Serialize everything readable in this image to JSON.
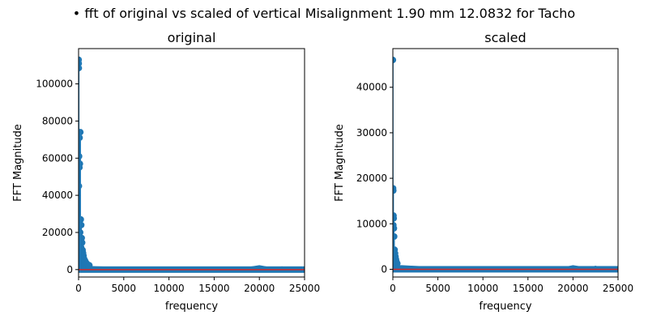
{
  "figure": {
    "suptitle": "• fft of original vs scaled of vertical Misalignment 1.90 mm 12.0832 for Tacho"
  },
  "colors": {
    "marker": "#1f77b4",
    "stem_baseline": "#d62728",
    "axes": "#000000",
    "background": "#ffffff"
  },
  "chart_data": [
    {
      "type": "scatter",
      "title": "original",
      "xlabel": "frequency",
      "ylabel": "FFT Magnitude",
      "xlim": [
        0,
        25000
      ],
      "ylim": [
        -4000,
        119000
      ],
      "xticks": [
        0,
        5000,
        10000,
        15000,
        20000,
        25000
      ],
      "yticks": [
        0,
        20000,
        40000,
        60000,
        80000,
        100000
      ],
      "peaks": [
        {
          "x": 10,
          "y": 113000
        },
        {
          "x": 20,
          "y": 111000
        },
        {
          "x": 30,
          "y": 108500
        },
        {
          "x": 200,
          "y": 74000
        },
        {
          "x": 120,
          "y": 71000
        },
        {
          "x": 60,
          "y": 61000
        },
        {
          "x": 150,
          "y": 57000
        },
        {
          "x": 100,
          "y": 55000
        },
        {
          "x": 40,
          "y": 45000
        },
        {
          "x": 250,
          "y": 27000
        },
        {
          "x": 300,
          "y": 24000
        },
        {
          "x": 180,
          "y": 20000
        },
        {
          "x": 350,
          "y": 17000
        },
        {
          "x": 400,
          "y": 14500
        },
        {
          "x": 280,
          "y": 12000
        },
        {
          "x": 450,
          "y": 10500
        },
        {
          "x": 500,
          "y": 9000
        },
        {
          "x": 550,
          "y": 7500
        },
        {
          "x": 600,
          "y": 6000
        },
        {
          "x": 700,
          "y": 5000
        },
        {
          "x": 800,
          "y": 4000
        },
        {
          "x": 900,
          "y": 3300
        },
        {
          "x": 1000,
          "y": 2800
        },
        {
          "x": 1200,
          "y": 2300
        }
      ],
      "envelope": [
        [
          0,
          2000
        ],
        [
          1000,
          2000
        ],
        [
          2000,
          1800
        ],
        [
          4000,
          1500
        ],
        [
          6000,
          1300
        ],
        [
          7000,
          1000
        ],
        [
          10000,
          800
        ],
        [
          15000,
          800
        ],
        [
          18000,
          900
        ],
        [
          19000,
          1600
        ],
        [
          20000,
          2400
        ],
        [
          21000,
          1500
        ],
        [
          22000,
          1100
        ],
        [
          22500,
          1800
        ],
        [
          23000,
          900
        ],
        [
          25000,
          800
        ]
      ]
    },
    {
      "type": "scatter",
      "title": "scaled",
      "xlabel": "frequency",
      "ylabel": "FFT Magnitude",
      "xlim": [
        0,
        25000
      ],
      "ylim": [
        -1700,
        48500
      ],
      "xticks": [
        0,
        5000,
        10000,
        15000,
        20000,
        25000
      ],
      "yticks": [
        0,
        10000,
        20000,
        30000,
        40000
      ],
      "peaks": [
        {
          "x": 10,
          "y": 46000
        },
        {
          "x": 30,
          "y": 17800
        },
        {
          "x": 50,
          "y": 17300
        },
        {
          "x": 80,
          "y": 11800
        },
        {
          "x": 100,
          "y": 11200
        },
        {
          "x": 60,
          "y": 9700
        },
        {
          "x": 120,
          "y": 9000
        },
        {
          "x": 150,
          "y": 7200
        },
        {
          "x": 200,
          "y": 4300
        },
        {
          "x": 250,
          "y": 3500
        },
        {
          "x": 300,
          "y": 2800
        },
        {
          "x": 350,
          "y": 2200
        },
        {
          "x": 400,
          "y": 1700
        },
        {
          "x": 500,
          "y": 1300
        }
      ],
      "envelope": [
        [
          0,
          900
        ],
        [
          1000,
          900
        ],
        [
          2000,
          800
        ],
        [
          4000,
          600
        ],
        [
          7000,
          500
        ],
        [
          15000,
          450
        ],
        [
          19000,
          500
        ],
        [
          20000,
          900
        ],
        [
          21000,
          600
        ],
        [
          22000,
          500
        ],
        [
          22500,
          800
        ],
        [
          23000,
          450
        ],
        [
          25000,
          450
        ]
      ]
    }
  ]
}
